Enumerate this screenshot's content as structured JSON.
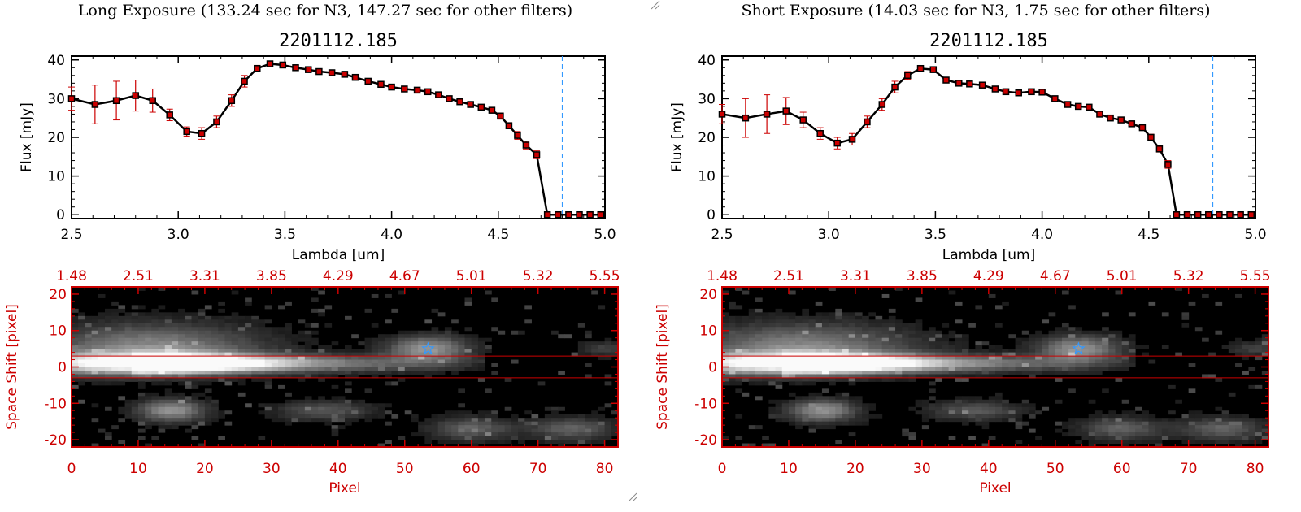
{
  "panels": [
    {
      "id": "long",
      "exposure_title": "Long Exposure (133.24 sec for N3, 147.27 sec for other filters)",
      "spectrum": {
        "type": "line",
        "title": "2201112.185",
        "xlabel": "Lambda [um]",
        "ylabel": "Flux [mJy]",
        "xlim": [
          2.5,
          5.0
        ],
        "ylim": [
          -1,
          41
        ],
        "xticks": [
          "2.5",
          "3.0",
          "3.5",
          "4.0",
          "4.5",
          "5.0"
        ],
        "yticks": [
          "0",
          "10",
          "20",
          "30",
          "40"
        ],
        "vline_x": 4.8,
        "x": [
          2.5,
          2.61,
          2.71,
          2.8,
          2.88,
          2.96,
          3.04,
          3.11,
          3.18,
          3.25,
          3.31,
          3.37,
          3.43,
          3.49,
          3.55,
          3.61,
          3.66,
          3.72,
          3.78,
          3.83,
          3.89,
          3.95,
          4.0,
          4.06,
          4.12,
          4.17,
          4.22,
          4.27,
          4.32,
          4.37,
          4.42,
          4.47,
          4.51,
          4.55,
          4.59,
          4.63,
          4.68,
          4.73,
          4.78,
          4.83,
          4.88,
          4.93,
          4.98
        ],
        "y": [
          30.0,
          28.5,
          29.5,
          30.8,
          29.5,
          25.8,
          21.5,
          21.0,
          24.0,
          29.5,
          34.5,
          37.8,
          39.0,
          38.7,
          38.0,
          37.5,
          37.0,
          36.7,
          36.3,
          35.5,
          34.5,
          33.7,
          33.0,
          32.5,
          32.2,
          31.8,
          31.0,
          30.0,
          29.2,
          28.5,
          27.8,
          27.0,
          25.5,
          23.0,
          20.5,
          18.0,
          15.5,
          0,
          0,
          0,
          0,
          0,
          0
        ],
        "err": [
          3.0,
          5.0,
          5.0,
          4.0,
          3.0,
          1.5,
          1.2,
          1.5,
          1.5,
          1.5,
          1.5,
          0.8,
          0.6,
          0.5,
          0.5,
          0.5,
          0.5,
          0.5,
          0.5,
          0.5,
          0.5,
          0.5,
          0.5,
          0.5,
          0.5,
          0.5,
          0.5,
          0.5,
          0.5,
          0.5,
          0.5,
          0.5,
          0.8,
          0.8,
          1.0,
          1.0,
          1.0,
          0,
          0,
          0,
          0,
          0,
          0
        ]
      },
      "image": {
        "type": "heatmap",
        "xlabel": "Pixel",
        "ylabel": "Space Shift [pixel]",
        "xlim": [
          0,
          82
        ],
        "ylim": [
          -22,
          22
        ],
        "xticks": [
          "0",
          "10",
          "20",
          "30",
          "40",
          "50",
          "60",
          "70",
          "80"
        ],
        "yticks": [
          "-20",
          "-10",
          "0",
          "10",
          "20"
        ],
        "top_ticks": [
          "1.48",
          "2.51",
          "3.31",
          "3.85",
          "4.29",
          "4.67",
          "5.01",
          "5.32",
          "5.55"
        ],
        "hlines": [
          3,
          -3
        ],
        "star": [
          53.5,
          5
        ]
      }
    },
    {
      "id": "short",
      "exposure_title": "Short Exposure (14.03 sec for N3, 1.75 sec for other filters)",
      "spectrum": {
        "type": "line",
        "title": "2201112.185",
        "xlabel": "Lambda [um]",
        "ylabel": "Flux [mJy]",
        "xlim": [
          2.5,
          5.0
        ],
        "ylim": [
          -1,
          41
        ],
        "xticks": [
          "2.5",
          "3.0",
          "3.5",
          "4.0",
          "4.5",
          "5.0"
        ],
        "yticks": [
          "0",
          "10",
          "20",
          "30",
          "40"
        ],
        "vline_x": 4.8,
        "x": [
          2.5,
          2.61,
          2.71,
          2.8,
          2.88,
          2.96,
          3.04,
          3.11,
          3.18,
          3.25,
          3.31,
          3.37,
          3.43,
          3.49,
          3.55,
          3.61,
          3.66,
          3.72,
          3.78,
          3.83,
          3.89,
          3.95,
          4.0,
          4.06,
          4.12,
          4.17,
          4.22,
          4.27,
          4.32,
          4.37,
          4.42,
          4.47,
          4.51,
          4.55,
          4.59,
          4.63,
          4.68,
          4.73,
          4.78,
          4.83,
          4.88,
          4.93,
          4.98
        ],
        "y": [
          26.0,
          25.0,
          26.0,
          26.8,
          24.5,
          21.0,
          18.5,
          19.5,
          24.0,
          28.5,
          33.0,
          36.0,
          37.8,
          37.5,
          34.8,
          34.0,
          33.8,
          33.5,
          32.5,
          31.8,
          31.5,
          31.8,
          31.7,
          30.0,
          28.5,
          28.0,
          27.8,
          26.0,
          25.0,
          24.5,
          23.5,
          22.5,
          20.0,
          17.0,
          13.0,
          0,
          0,
          0,
          0,
          0,
          0,
          0,
          0
        ],
        "err": [
          2.5,
          5.0,
          5.0,
          3.5,
          2.0,
          1.5,
          1.5,
          1.5,
          1.5,
          1.5,
          1.5,
          1.0,
          0.6,
          0.5,
          0.5,
          0.5,
          0.5,
          0.5,
          0.5,
          0.5,
          0.5,
          0.5,
          0.5,
          0.5,
          0.5,
          0.5,
          0.5,
          0.5,
          0.5,
          0.5,
          0.5,
          0.5,
          0.8,
          0.8,
          1.0,
          0,
          0,
          0,
          0,
          0,
          0,
          0,
          0
        ]
      },
      "image": {
        "type": "heatmap",
        "xlabel": "Pixel",
        "ylabel": "Space Shift [pixel]",
        "xlim": [
          0,
          82
        ],
        "ylim": [
          -22,
          22
        ],
        "xticks": [
          "0",
          "10",
          "20",
          "30",
          "40",
          "50",
          "60",
          "70",
          "80"
        ],
        "yticks": [
          "-20",
          "-10",
          "0",
          "10",
          "20"
        ],
        "top_ticks": [
          "1.48",
          "2.51",
          "3.31",
          "3.85",
          "4.29",
          "4.67",
          "5.01",
          "5.32",
          "5.55"
        ],
        "hlines": [
          3,
          -3
        ],
        "star": [
          53.5,
          5
        ]
      }
    }
  ],
  "colors": {
    "axis_red": "#cc0000",
    "marker_red": "#cc0000",
    "line": "#000000",
    "vline_blue": "#3399ff",
    "star_blue": "#3399ff"
  }
}
